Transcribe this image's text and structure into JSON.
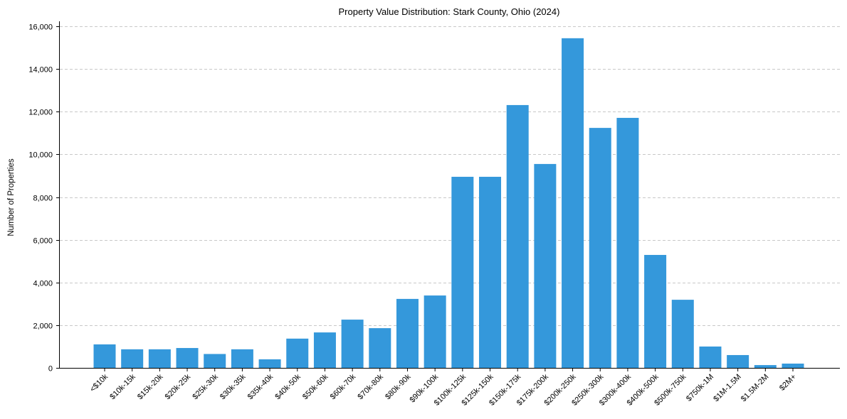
{
  "chart_data": {
    "type": "bar",
    "title": "Property Value Distribution: Stark County, Ohio (2024)",
    "xlabel": "",
    "ylabel": "Number of Properties",
    "ylim": [
      0,
      16200
    ],
    "yticks": [
      0,
      2000,
      4000,
      6000,
      8000,
      10000,
      12000,
      14000,
      16000
    ],
    "ytick_labels": [
      "0",
      "2,000",
      "4,000",
      "6,000",
      "8,000",
      "10,000",
      "12,000",
      "14,000",
      "16,000"
    ],
    "grid": "y-dashed",
    "bar_color": "#3498db",
    "categories": [
      "<$10k",
      "$10k-15k",
      "$15k-20k",
      "$20k-25k",
      "$25k-30k",
      "$30k-35k",
      "$35k-40k",
      "$40k-50k",
      "$50k-60k",
      "$60k-70k",
      "$70k-80k",
      "$80k-90k",
      "$90k-100k",
      "$100k-125k",
      "$125k-150k",
      "$150k-175k",
      "$175k-200k",
      "$200k-250k",
      "$250k-300k",
      "$300k-400k",
      "$400k-500k",
      "$500k-750k",
      "$750k-1M",
      "$1M-1.5M",
      "$1.5M-2M",
      "$2M+"
    ],
    "values": [
      1100,
      870,
      870,
      930,
      650,
      870,
      400,
      1370,
      1660,
      2260,
      1860,
      3230,
      3390,
      8950,
      8950,
      12310,
      9550,
      15440,
      11240,
      11710,
      5290,
      3190,
      1000,
      600,
      130,
      200
    ]
  }
}
